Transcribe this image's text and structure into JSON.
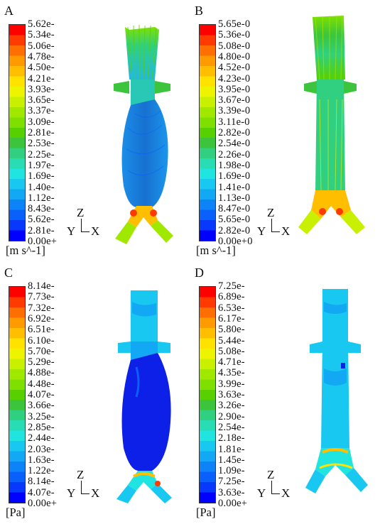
{
  "panels": [
    {
      "letter": "A",
      "unit": "[m s^-1]",
      "ticks": [
        "5.62e-",
        "5.34e-",
        "5.06e-",
        "4.78e-",
        "4.50e-",
        "4.21e-",
        "3.93e-",
        "3.65e-",
        "3.37e-",
        "3.09e-",
        "2.81e-",
        "2.53e-",
        "2.25e-",
        "1.97e-",
        "1.69e-",
        "1.40e-",
        "1.12e-",
        "8.43e-",
        "5.62e-",
        "2.81e-",
        "0.00e+"
      ],
      "axis_z": "Z",
      "axis_y": "Y",
      "axis_x": "X"
    },
    {
      "letter": "B",
      "unit": "[m s^-1]",
      "ticks": [
        "5.65e-0",
        "5.36e-0",
        "5.08e-0",
        "4.80e-0",
        "4.52e-0",
        "4.23e-0",
        "3.95e-0",
        "3.67e-0",
        "3.39e-0",
        "3.11e-0",
        "2.82e-0",
        "2.54e-0",
        "2.26e-0",
        "1.98e-0",
        "1.69e-0",
        "1.41e-0",
        "1.13e-0",
        "8.47e-0",
        "5.65e-0",
        "2.82e-0",
        "0.00e+0"
      ],
      "axis_z": "Z",
      "axis_y": "Y",
      "axis_x": "X"
    },
    {
      "letter": "C",
      "unit": "[Pa]",
      "ticks": [
        "8.14e-",
        "7.73e-",
        "7.32e-",
        "6.92e-",
        "6.51e-",
        "6.10e-",
        "5.70e-",
        "5.29e-",
        "4.88e-",
        "4.48e-",
        "4.07e-",
        "3.66e-",
        "3.25e-",
        "2.85e-",
        "2.44e-",
        "2.03e-",
        "1.63e-",
        "1.22e-",
        "8.14e-",
        "4.07e-",
        "0.00e+"
      ],
      "axis_z": "Z",
      "axis_y": "Y",
      "axis_x": "X"
    },
    {
      "letter": "D",
      "unit": "[Pa]",
      "ticks": [
        "7.25e-",
        "6.89e-",
        "6.53e-",
        "6.17e-",
        "5.80e-",
        "5.44e-",
        "5.08e-",
        "4.71e-",
        "4.35e-",
        "3.99e-",
        "3.63e-",
        "3.26e-",
        "2.90e-",
        "2.54e-",
        "2.18e-",
        "1.81e-",
        "1.45e-",
        "1.09e-",
        "7.25e-",
        "3.63e-",
        "0.00e+"
      ],
      "axis_z": "Z",
      "axis_y": "Y",
      "axis_x": "X"
    }
  ],
  "colormap": [
    "#ff0000",
    "#ff3a00",
    "#ff6e00",
    "#ff9a00",
    "#ffbf00",
    "#ffe200",
    "#eef400",
    "#c8f000",
    "#a0e800",
    "#7fe000",
    "#58d000",
    "#3cc53c",
    "#30d080",
    "#28dcb4",
    "#20e4e0",
    "#18c8f0",
    "#12a8f4",
    "#0c84f8",
    "#0a60fa",
    "#0838fc",
    "#0000ff"
  ]
}
